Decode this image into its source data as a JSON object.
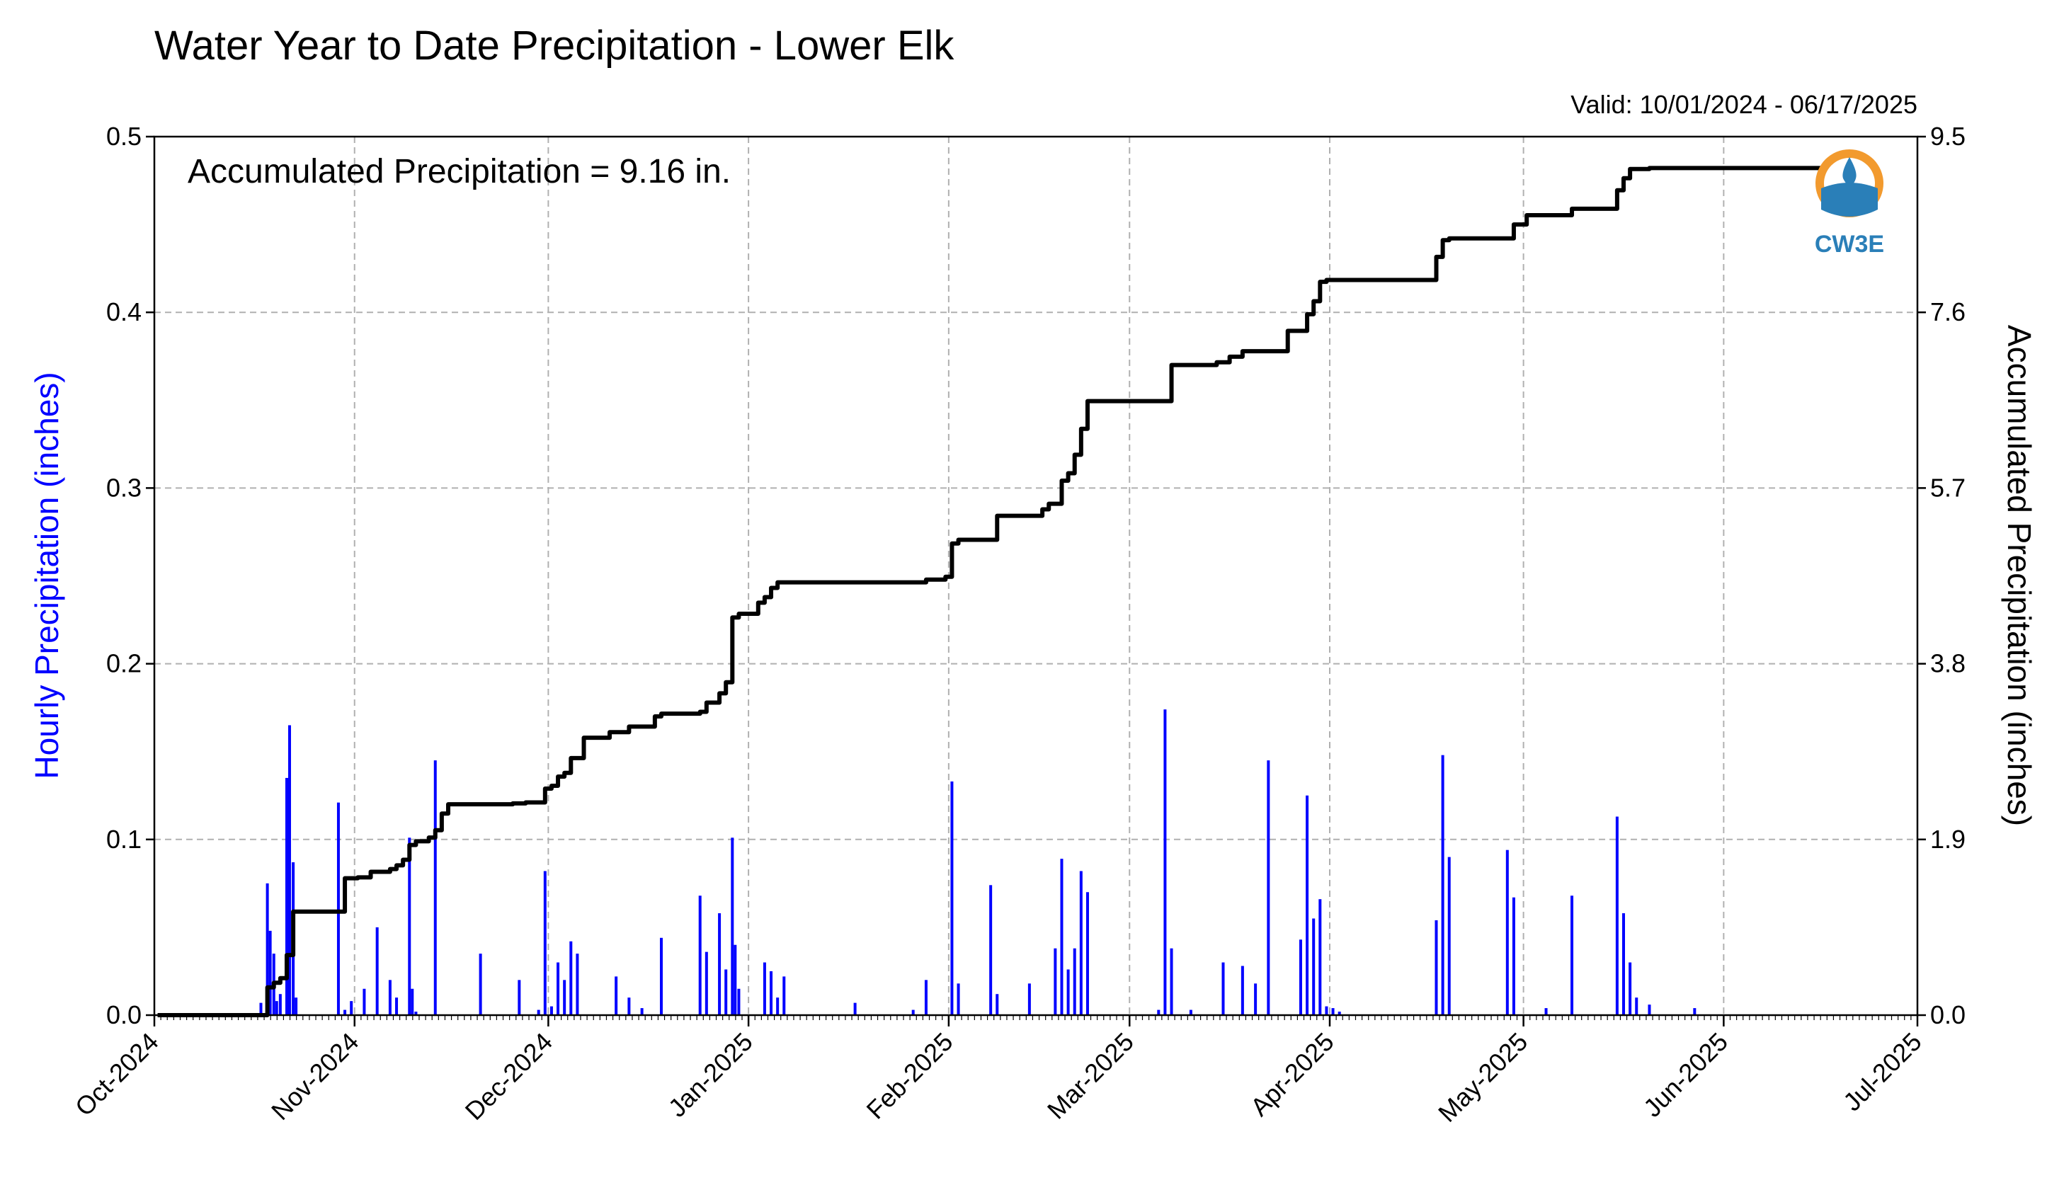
{
  "chart_data": {
    "type": "bar+line",
    "title": "Water Year to Date Precipitation - Lower Elk",
    "subtitle": "Valid: 10/01/2024 - 06/17/2025",
    "annotation": "Accumulated Precipitation = 9.16 in.",
    "ylabel_left": "Hourly Precipitation (inches)",
    "ylabel_right": "Accumulated Precipitation (inches)",
    "ylim_left": [
      0,
      0.5
    ],
    "ylim_right": [
      0,
      9.5
    ],
    "xlim": [
      "2024-10-01",
      "2025-07-01"
    ],
    "grid": true,
    "left_ticks": [
      {
        "v": 0,
        "label": "0.0"
      },
      {
        "v": 0.1,
        "label": "0.1"
      },
      {
        "v": 0.2,
        "label": "0.2"
      },
      {
        "v": 0.3,
        "label": "0.3"
      },
      {
        "v": 0.4,
        "label": "0.4"
      },
      {
        "v": 0.5,
        "label": "0.5"
      }
    ],
    "right_ticks": [
      {
        "v": 0,
        "label": "0.0"
      },
      {
        "v": 1.9,
        "label": "1.9"
      },
      {
        "v": 3.8,
        "label": "3.8"
      },
      {
        "v": 5.7,
        "label": "5.7"
      },
      {
        "v": 7.6,
        "label": "7.6"
      },
      {
        "v": 9.5,
        "label": "9.5"
      }
    ],
    "x_ticks": [
      {
        "date": "2024-10-01",
        "label": "Oct-2024"
      },
      {
        "date": "2024-11-01",
        "label": "Nov-2024"
      },
      {
        "date": "2024-12-01",
        "label": "Dec-2024"
      },
      {
        "date": "2025-01-01",
        "label": "Jan-2025"
      },
      {
        "date": "2025-02-01",
        "label": "Feb-2025"
      },
      {
        "date": "2025-03-01",
        "label": "Mar-2025"
      },
      {
        "date": "2025-04-01",
        "label": "Apr-2025"
      },
      {
        "date": "2025-05-01",
        "label": "May-2025"
      },
      {
        "date": "2025-06-01",
        "label": "Jun-2025"
      },
      {
        "date": "2025-07-01",
        "label": "Jul-2025"
      }
    ],
    "series": [
      {
        "name": "Hourly Precipitation",
        "type": "bar",
        "axis": "left",
        "color": "#0000ff",
        "x": [
          "2024-10-17",
          "2024-10-18",
          "2024-10-18",
          "2024-10-19",
          "2024-10-19",
          "2024-10-20",
          "2024-10-21",
          "2024-10-21",
          "2024-10-22",
          "2024-10-22",
          "2024-10-29",
          "2024-10-30",
          "2024-10-31",
          "2024-11-02",
          "2024-11-04",
          "2024-11-06",
          "2024-11-07",
          "2024-11-09",
          "2024-11-09",
          "2024-11-10",
          "2024-11-13",
          "2024-11-20",
          "2024-11-26",
          "2024-11-29",
          "2024-11-30",
          "2024-12-01",
          "2024-12-02",
          "2024-12-03",
          "2024-12-04",
          "2024-12-05",
          "2024-12-11",
          "2024-12-13",
          "2024-12-15",
          "2024-12-18",
          "2024-12-24",
          "2024-12-25",
          "2024-12-27",
          "2024-12-28",
          "2024-12-29",
          "2024-12-29",
          "2024-12-30",
          "2025-01-03",
          "2025-01-04",
          "2025-01-05",
          "2025-01-06",
          "2025-01-17",
          "2025-01-26",
          "2025-01-28",
          "2025-02-01",
          "2025-02-02",
          "2025-02-07",
          "2025-02-08",
          "2025-02-13",
          "2025-02-17",
          "2025-02-18",
          "2025-02-19",
          "2025-02-20",
          "2025-02-21",
          "2025-02-22",
          "2025-03-05",
          "2025-03-06",
          "2025-03-07",
          "2025-03-10",
          "2025-03-15",
          "2025-03-18",
          "2025-03-20",
          "2025-03-22",
          "2025-03-27",
          "2025-03-28",
          "2025-03-29",
          "2025-03-30",
          "2025-03-31",
          "2025-04-01",
          "2025-04-02",
          "2025-04-17",
          "2025-04-18",
          "2025-04-19",
          "2025-04-28",
          "2025-04-29",
          "2025-05-04",
          "2025-05-08",
          "2025-05-15",
          "2025-05-16",
          "2025-05-17",
          "2025-05-18",
          "2025-05-20",
          "2025-05-27"
        ],
        "values": [
          0.007,
          0.075,
          0.048,
          0.035,
          0.008,
          0.012,
          0.135,
          0.165,
          0.087,
          0.01,
          0.121,
          0.003,
          0.008,
          0.015,
          0.05,
          0.02,
          0.01,
          0.101,
          0.015,
          0.002,
          0.145,
          0.035,
          0.02,
          0.003,
          0.082,
          0.005,
          0.03,
          0.02,
          0.042,
          0.035,
          0.022,
          0.01,
          0.004,
          0.044,
          0.068,
          0.036,
          0.058,
          0.026,
          0.101,
          0.04,
          0.015,
          0.03,
          0.025,
          0.01,
          0.022,
          0.007,
          0.003,
          0.02,
          0.133,
          0.018,
          0.074,
          0.012,
          0.018,
          0.038,
          0.089,
          0.026,
          0.038,
          0.082,
          0.07,
          0.003,
          0.174,
          0.038,
          0.003,
          0.03,
          0.028,
          0.018,
          0.145,
          0.043,
          0.125,
          0.055,
          0.066,
          0.005,
          0.004,
          0.002,
          0.054,
          0.148,
          0.09,
          0.094,
          0.067,
          0.004,
          0.068,
          0.113,
          0.058,
          0.03,
          0.01,
          0.006,
          0.004
        ]
      },
      {
        "name": "Accumulated Precipitation",
        "type": "line",
        "axis": "right",
        "color": "#000000",
        "x": [
          "2024-10-01",
          "2024-10-17",
          "2024-10-18",
          "2024-10-19",
          "2024-10-20",
          "2024-10-21",
          "2024-10-22",
          "2024-10-29",
          "2024-10-30",
          "2024-11-01",
          "2024-11-03",
          "2024-11-06",
          "2024-11-07",
          "2024-11-08",
          "2024-11-09",
          "2024-11-10",
          "2024-11-12",
          "2024-11-13",
          "2024-11-14",
          "2024-11-15",
          "2024-11-18",
          "2024-11-25",
          "2024-11-26",
          "2024-11-27",
          "2024-11-30",
          "2024-12-01",
          "2024-12-02",
          "2024-12-03",
          "2024-12-04",
          "2024-12-06",
          "2024-12-10",
          "2024-12-13",
          "2024-12-17",
          "2024-12-18",
          "2024-12-24",
          "2024-12-25",
          "2024-12-27",
          "2024-12-28",
          "2024-12-29",
          "2024-12-30",
          "2025-01-02",
          "2025-01-03",
          "2025-01-04",
          "2025-01-05",
          "2025-01-06",
          "2025-01-17",
          "2025-01-28",
          "2025-01-31",
          "2025-02-01",
          "2025-02-02",
          "2025-02-08",
          "2025-02-09",
          "2025-02-15",
          "2025-02-16",
          "2025-02-18",
          "2025-02-19",
          "2025-02-20",
          "2025-02-21",
          "2025-02-22",
          "2025-03-06",
          "2025-03-07",
          "2025-03-08",
          "2025-03-14",
          "2025-03-16",
          "2025-03-17",
          "2025-03-18",
          "2025-03-25",
          "2025-03-27",
          "2025-03-28",
          "2025-03-29",
          "2025-03-30",
          "2025-03-31",
          "2025-04-01",
          "2025-04-03",
          "2025-04-17",
          "2025-04-18",
          "2025-04-19",
          "2025-04-28",
          "2025-04-29",
          "2025-05-01",
          "2025-05-08",
          "2025-05-15",
          "2025-05-16",
          "2025-05-17",
          "2025-05-20",
          "2025-05-27",
          "2025-06-17"
        ],
        "values": [
          0.0,
          0.0,
          0.3,
          0.35,
          0.4,
          0.65,
          1.12,
          1.12,
          1.48,
          1.49,
          1.55,
          1.58,
          1.62,
          1.68,
          1.84,
          1.88,
          1.92,
          2.0,
          2.18,
          2.28,
          2.28,
          2.29,
          2.29,
          2.3,
          2.45,
          2.48,
          2.58,
          2.62,
          2.78,
          3.0,
          3.06,
          3.12,
          3.23,
          3.26,
          3.28,
          3.38,
          3.48,
          3.6,
          4.3,
          4.34,
          4.46,
          4.52,
          4.62,
          4.68,
          4.68,
          4.68,
          4.71,
          4.74,
          5.1,
          5.14,
          5.4,
          5.4,
          5.47,
          5.53,
          5.78,
          5.86,
          6.06,
          6.34,
          6.64,
          6.64,
          7.03,
          7.03,
          7.06,
          7.12,
          7.12,
          7.18,
          7.4,
          7.4,
          7.58,
          7.72,
          7.93,
          7.95,
          7.95,
          7.95,
          8.2,
          8.38,
          8.4,
          8.4,
          8.55,
          8.65,
          8.72,
          8.92,
          9.05,
          9.15,
          9.16,
          9.16,
          9.16
        ]
      }
    ],
    "logo_text": "CW3E"
  }
}
